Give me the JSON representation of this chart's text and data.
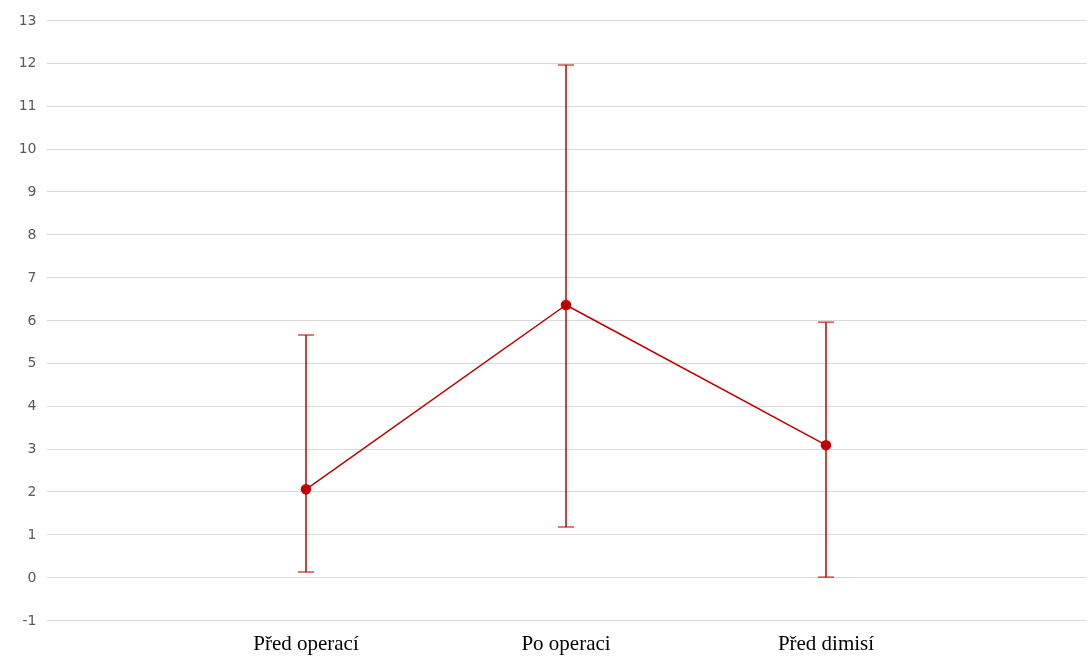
{
  "chart_data": {
    "type": "line",
    "categories": [
      "Před operací",
      "Po operaci",
      "Před dimisí"
    ],
    "series": [
      {
        "color": "#c00000",
        "values": [
          2.05,
          6.35,
          3.08
        ],
        "errors": [
          [
            0.12,
            5.65
          ],
          [
            1.17,
            11.95
          ],
          [
            0,
            5.95
          ]
        ]
      }
    ],
    "ylim": [
      -1,
      13
    ],
    "yticks": [
      -1,
      0,
      1,
      2,
      3,
      4,
      5,
      6,
      7,
      8,
      9,
      10,
      11,
      12,
      13
    ],
    "grid": "y",
    "marker": "circle",
    "line_style": "solid"
  }
}
